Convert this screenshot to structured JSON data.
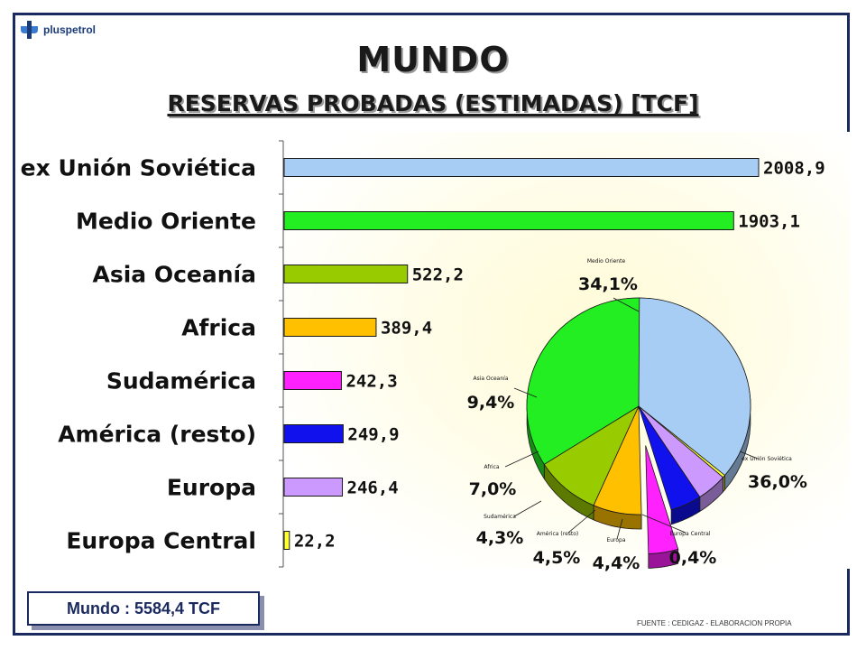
{
  "header": {
    "logo_text": "pluspetrol",
    "title": "MUNDO",
    "subtitle": "RESERVAS PROBADAS (ESTIMADAS) [TCF]"
  },
  "chart_data": [
    {
      "type": "bar",
      "orientation": "horizontal",
      "categories": [
        "ex Unión Soviética",
        "Medio Oriente",
        "Asia Oceanía",
        "Africa",
        "Sudamérica",
        "América (resto)",
        "Europa",
        "Europa Central"
      ],
      "values": [
        2008.9,
        1903.1,
        522.2,
        389.4,
        242.3,
        249.9,
        246.4,
        22.2
      ],
      "value_labels": [
        "2008,9",
        "1903,1",
        "522,2",
        "389,4",
        "242,3",
        "249,9",
        "246,4",
        "22,2"
      ],
      "colors": [
        "#a8cdf5",
        "#22ee22",
        "#99cc00",
        "#ffc000",
        "#ff22ff",
        "#1111ee",
        "#cc99ff",
        "#ffff33"
      ],
      "xlim": [
        0,
        2150
      ]
    },
    {
      "type": "pie",
      "style": "3d",
      "slices": [
        {
          "label": "ex Unión Soviética",
          "pct": 36.0,
          "pct_label": "36,0%",
          "color": "#a8cdf5"
        },
        {
          "label": "Europa Central",
          "pct": 0.4,
          "pct_label": "0,4%",
          "color": "#ffff33"
        },
        {
          "label": "Europa",
          "pct": 4.4,
          "pct_label": "4,4%",
          "color": "#cc99ff"
        },
        {
          "label": "América (resto)",
          "pct": 4.5,
          "pct_label": "4,5%",
          "color": "#1111ee"
        },
        {
          "label": "Sudamérica",
          "pct": 4.3,
          "pct_label": "4,3%",
          "color": "#ff22ff",
          "exploded": true
        },
        {
          "label": "Africa",
          "pct": 7.0,
          "pct_label": "7,0%",
          "color": "#ffc000"
        },
        {
          "label": "Asia Oceanía",
          "pct": 9.4,
          "pct_label": "9,4%",
          "color": "#99cc00"
        },
        {
          "label": "Medio Oriente",
          "pct": 34.1,
          "pct_label": "34,1%",
          "color": "#22ee22"
        }
      ]
    }
  ],
  "footer": {
    "total": "Mundo : 5584,4 TCF",
    "source": "FUENTE : CEDIGAZ - ELABORACION PROPIA"
  }
}
